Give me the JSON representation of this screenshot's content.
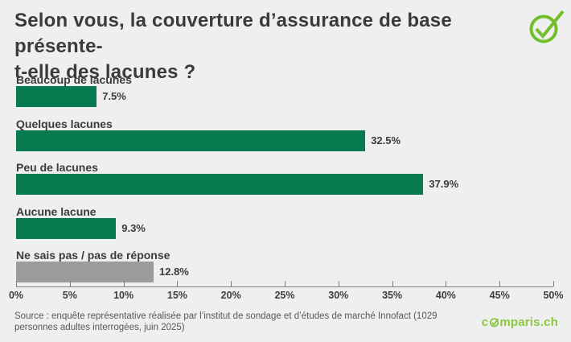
{
  "header": {
    "title": "Selon vous, la couverture d’assurance de base présente-t-elle des lacunes ?",
    "title_lines": [
      "Selon vous, la couverture d’assurance de base présente-",
      "t-elle des lacunes ?"
    ],
    "check_icon": "circled-checkmark"
  },
  "chart_data": {
    "type": "bar",
    "orientation": "horizontal",
    "title": "Selon vous, la couverture d’assurance de base présente-t-elle des lacunes ?",
    "categories": [
      "Beaucoup de lacunes",
      "Quelques lacunes",
      "Peu de lacunes",
      "Aucune lacune",
      "Ne sais pas / pas de réponse"
    ],
    "values": [
      7.5,
      32.5,
      37.9,
      9.3,
      12.8
    ],
    "value_labels": [
      "7.5%",
      "32.5%",
      "37.9%",
      "9.3%",
      "12.8%"
    ],
    "bar_colors": [
      "#087A50",
      "#087A50",
      "#087A50",
      "#087A50",
      "#9C9C9C"
    ],
    "xlabel": "",
    "ylabel": "",
    "xlim": [
      0,
      50
    ],
    "x_tick_values": [
      0,
      5,
      10,
      15,
      20,
      25,
      30,
      35,
      40,
      45,
      50
    ],
    "x_ticks": [
      "0%",
      "5%",
      "10%",
      "15%",
      "20%",
      "25%",
      "30%",
      "35%",
      "40%",
      "45%",
      "50%"
    ],
    "grid": false,
    "legend": false
  },
  "footer": {
    "source_text": "Source : enquête représentative réalisée par l’institut de sondage et d’études de marché Innofact (1029 personnes adultes interrogées, juin 2025)",
    "logo": {
      "text": "comparis.ch",
      "prefix": "c",
      "suffix": "mparis.ch",
      "o_icon": "check-circle-o"
    }
  },
  "colors": {
    "background": "#EFEFEF",
    "bar_green": "#087A50",
    "bar_gray": "#9C9C9C",
    "accent_green": "#72BF2B",
    "logo_green": "#8DC63F",
    "text_dark": "#3B3B3B",
    "axis": "#7E7E7E"
  }
}
